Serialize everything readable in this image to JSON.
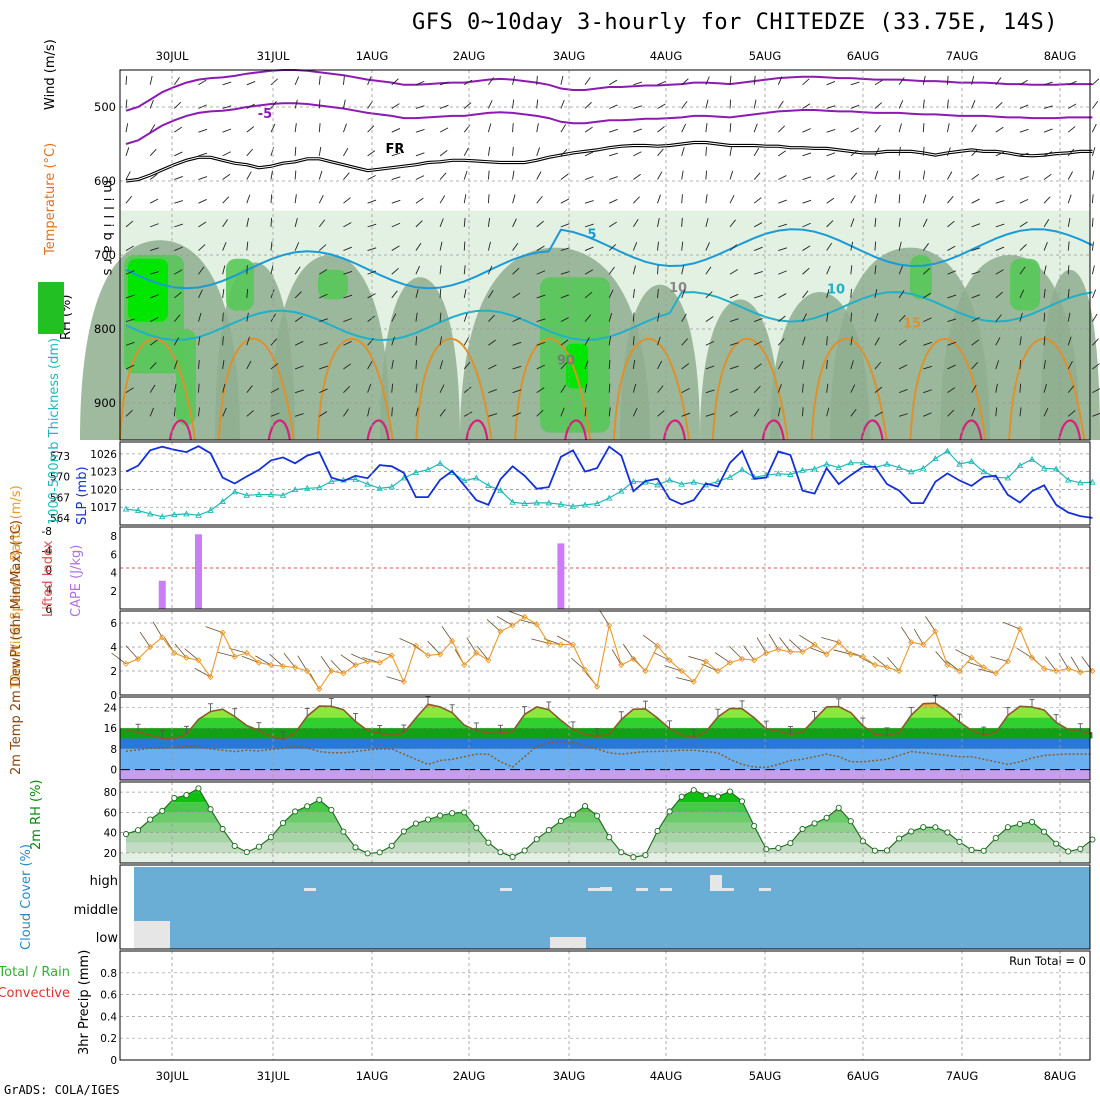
{
  "title": "GFS 0~10day 3-hourly for CHITEDZE (33.75E, 14S)",
  "credit": "GrADS: COLA/IGES",
  "dates": [
    "30JUL",
    "31JUL",
    "1AUG",
    "2AUG",
    "3AUG",
    "4AUG",
    "5AUG",
    "6AUG",
    "7AUG",
    "8AUG"
  ],
  "chart_data": [
    {
      "type": "heatmap",
      "panel": "upper-air",
      "ylabel": "millibars",
      "yticks": [
        500,
        600,
        700,
        800,
        900
      ],
      "ylim": [
        450,
        950
      ],
      "legend_labels": [
        "Wind (m/s)",
        "Temperature (°C)",
        "RH (%)"
      ],
      "contour_labels": [
        "-5",
        "FR",
        "5",
        "10",
        "15",
        "10",
        "90"
      ],
      "colors": {
        "rh_light": "#e3f1e3",
        "rh_mid": "#b8d6b8",
        "rh_dark": "#8fae8f",
        "rh_green": "#58c858",
        "rh_bright": "#00e600",
        "temp_purple": "#8c1ab3",
        "freezing": "#000000",
        "temp_5_10": "#1a9ad6",
        "temp_10": "#20b0c8",
        "temp_15": "#e0902a",
        "temp_20": "#d6207a"
      },
      "freezing_level_mb": [
        600,
        598,
        592,
        585,
        578,
        572,
        568,
        568,
        572,
        576,
        578,
        582,
        580,
        576,
        574,
        570,
        570,
        574,
        578,
        582,
        586,
        584,
        582,
        580,
        578,
        575,
        574,
        572,
        572,
        573,
        574,
        575,
        575,
        575,
        572,
        568,
        565,
        562,
        560,
        558,
        555,
        553,
        552,
        552,
        553,
        552,
        550,
        548,
        548,
        550,
        552,
        552,
        552,
        553,
        553,
        555,
        555,
        556,
        556,
        558,
        560,
        562,
        562,
        560,
        560,
        560,
        562,
        565,
        562,
        560,
        558,
        560,
        560,
        562,
        565,
        566,
        565,
        563,
        562,
        560,
        560
      ],
      "minus5_level_mb": [
        550,
        545,
        535,
        525,
        518,
        512,
        508,
        506,
        505,
        503,
        500,
        498,
        496,
        495,
        495,
        496,
        498,
        500,
        502,
        505,
        508,
        510,
        512,
        515,
        515,
        514,
        513,
        512,
        512,
        510,
        508,
        507,
        508,
        510,
        512,
        515,
        520,
        522,
        522,
        520,
        518,
        518,
        517,
        516,
        516,
        515,
        514,
        512,
        512,
        513,
        514,
        512,
        510,
        508,
        506,
        505,
        504,
        504,
        505,
        506,
        506,
        507,
        508,
        508,
        508,
        509,
        510,
        510,
        511,
        512,
        512,
        512,
        513,
        514,
        514,
        515,
        515,
        515,
        514,
        514,
        514
      ]
    },
    {
      "type": "line",
      "panel": "slp-thickness",
      "ylabel_left": "1000-500mb Thickness (dm)",
      "ylabel_right": "SLP (mb)",
      "thickness_ticks": [
        564,
        567,
        570,
        573
      ],
      "slp_ticks": [
        1017,
        1020,
        1023,
        1026
      ],
      "thickness_ylim": [
        563,
        575
      ],
      "slp_ylim": [
        1014,
        1028
      ],
      "series": [
        {
          "name": "SLP",
          "color": "#1430d8",
          "values": [
            1023.0,
            1024.0,
            1026.6,
            1027.2,
            1026.7,
            1026.3,
            1027.3,
            1026.1,
            1022.0,
            1021.0,
            1022.2,
            1023.3,
            1024.9,
            1025.4,
            1024.4,
            1025.7,
            1026.3,
            1022.0,
            1021.4,
            1022.3,
            1021.9,
            1024.1,
            1023.9,
            1022.8,
            1018.7,
            1018.7,
            1021.6,
            1023.1,
            1020.7,
            1018.2,
            1017.4,
            1021.7,
            1023.9,
            1022.3,
            1020.1,
            1020.4,
            1025.5,
            1026.6,
            1023.0,
            1023.6,
            1027.2,
            1025.7,
            1019.7,
            1021.4,
            1021.8,
            1018.4,
            1017.5,
            1018.2,
            1021.0,
            1020.5,
            1024.5,
            1026.5,
            1021.8,
            1022.0,
            1026.4,
            1025.8,
            1019.8,
            1019.3,
            1023.6,
            1020.9,
            1022.4,
            1023.8,
            1023.8,
            1020.9,
            1019.8,
            1017.7,
            1017.7,
            1021.3,
            1022.7,
            1021.5,
            1020.6,
            1022.1,
            1022.3,
            1019.1,
            1017.8,
            1019.7,
            1020.7,
            1017.4,
            1016.1,
            1015.5,
            1015.2
          ]
        },
        {
          "name": "Thickness",
          "color": "#20b8b8",
          "values": [
            565.3,
            565.1,
            564.6,
            564.2,
            564.5,
            564.6,
            564.4,
            565.1,
            566.4,
            567.8,
            567.3,
            567.4,
            567.4,
            567.3,
            568.1,
            568.3,
            568.4,
            569.3,
            569.5,
            569.6,
            568.9,
            568.3,
            568.5,
            569.8,
            570.6,
            571.0,
            571.9,
            570.6,
            569.4,
            569.8,
            568.7,
            568.0,
            566.3,
            566.1,
            566.2,
            566.2,
            566.0,
            565.7,
            565.9,
            566.1,
            566.9,
            567.9,
            569.3,
            569.2,
            568.8,
            569.5,
            568.9,
            569.2,
            568.8,
            569.3,
            569.9,
            571.0,
            569.9,
            570.2,
            570.4,
            570.3,
            570.9,
            571.1,
            571.8,
            571.3,
            572.0,
            572.0,
            571.3,
            571.8,
            571.3,
            570.7,
            571.2,
            572.6,
            573.7,
            571.8,
            572.2,
            570.7,
            569.9,
            569.8,
            571.6,
            572.5,
            571.2,
            571.1,
            569.5,
            569.1,
            569.2
          ]
        }
      ]
    },
    {
      "type": "bar",
      "panel": "cape-lifted-index",
      "ylabel_left": "Lifted Index",
      "ylabel_right": "CAPE (J/kg)",
      "li_ticks": [
        "-8",
        "-4",
        "0",
        "4",
        "6"
      ],
      "cape_ticks": [
        "2",
        "4",
        "6",
        "8"
      ],
      "colors": {
        "cape": "#c97ef5",
        "li_zero": "#e05050"
      },
      "series": [
        {
          "name": "CAPE",
          "values": [
            0,
            0,
            0,
            3.1,
            0,
            0,
            8.2,
            0,
            0,
            0,
            0,
            0,
            0,
            0,
            0,
            0,
            0,
            0,
            0,
            0,
            0,
            0,
            0,
            0,
            0,
            0,
            0,
            0,
            0,
            0,
            0,
            0,
            0,
            0,
            0,
            0,
            7.2,
            0,
            0,
            0,
            0,
            0,
            0,
            0,
            0,
            0,
            0,
            0,
            0,
            0,
            0,
            0,
            0,
            0,
            0,
            0,
            0,
            0,
            0,
            0,
            0,
            0,
            0,
            0,
            0,
            0,
            0,
            0,
            0,
            0,
            0,
            0,
            0,
            0,
            0,
            0,
            0,
            0,
            0,
            0,
            0
          ]
        }
      ]
    },
    {
      "type": "line",
      "panel": "10m-wind",
      "ylabel": "10m Wind Speed & Barbs (m/s)",
      "yticks": [
        0,
        2,
        4,
        6
      ],
      "ylim": [
        0,
        7
      ],
      "series": [
        {
          "name": "10m Wind Speed",
          "color": "#e89a2c",
          "values": [
            2.6,
            3.0,
            4.0,
            4.8,
            3.5,
            3.1,
            2.9,
            1.5,
            5.2,
            3.2,
            3.5,
            2.7,
            2.5,
            2.4,
            2.3,
            2.0,
            0.5,
            2.0,
            1.8,
            2.5,
            2.8,
            2.7,
            3.3,
            1.1,
            4.1,
            3.3,
            3.4,
            4.5,
            2.5,
            3.5,
            2.9,
            5.3,
            5.8,
            6.5,
            5.9,
            4.3,
            4.2,
            4.2,
            2.1,
            0.7,
            5.8,
            2.5,
            3.0,
            2.0,
            4.1,
            2.9,
            2.0,
            1.1,
            2.8,
            2.0,
            2.7,
            3.0,
            2.9,
            3.5,
            3.8,
            3.6,
            3.6,
            4.2,
            3.4,
            4.4,
            3.4,
            3.2,
            2.5,
            2.3,
            2.0,
            4.4,
            4.2,
            5.3,
            2.5,
            2.0,
            3.1,
            2.3,
            1.8,
            2.8,
            5.5,
            3.1,
            2.2,
            2.0,
            2.2,
            1.9,
            2.0
          ]
        }
      ]
    },
    {
      "type": "area",
      "panel": "2m-temperature",
      "ylabel": "2m Temp 2m DewPt (6hr Min/Max) (°C)",
      "yticks": [
        0,
        8,
        16,
        24
      ],
      "ylim": [
        -4,
        28
      ],
      "series": [
        {
          "name": "2m Temp",
          "color": "#8b5a2b",
          "values": [
            15.0,
            14.5,
            13.3,
            12.0,
            11.8,
            13.7,
            19.4,
            22.4,
            23.3,
            20.5,
            17.0,
            15.1,
            12.8,
            11.6,
            14.2,
            20.6,
            24.5,
            24.4,
            23.1,
            18.6,
            15.1,
            14.0,
            13.2,
            14.2,
            19.9,
            25.2,
            24.2,
            22.0,
            17.2,
            15.0,
            14.1,
            14.1,
            14.7,
            21.3,
            24.2,
            23.1,
            19.0,
            15.4,
            13.6,
            12.8,
            13.6,
            19.3,
            23.3,
            23.4,
            19.9,
            15.8,
            13.3,
            12.4,
            14.6,
            20.3,
            23.6,
            23.5,
            20.0,
            15.7,
            14.8,
            13.6,
            14.5,
            19.4,
            24.2,
            24.3,
            22.0,
            16.9,
            13.6,
            13.1,
            14.3,
            21.0,
            25.4,
            25.6,
            22.5,
            18.4,
            15.1,
            13.4,
            14.3,
            20.9,
            24.4,
            24.1,
            23.0,
            18.2,
            15.5,
            14.7,
            14.1
          ]
        },
        {
          "name": "2m DewPt",
          "color": "#8b5a2b",
          "values": [
            7.1,
            7.6,
            8.3,
            8.3,
            8.6,
            9.0,
            8.9,
            8.0,
            7.5,
            7.0,
            7.5,
            7.2,
            7.8,
            8.2,
            9.0,
            8.3,
            7.0,
            6.5,
            6.5,
            7.0,
            7.6,
            8.0,
            8.0,
            6.0,
            4.0,
            2.0,
            3.5,
            4.0,
            5.0,
            6.0,
            6.0,
            3.0,
            1.0,
            5.0,
            9.0,
            10.5,
            10.8,
            10.5,
            9.0,
            8.0,
            6.5,
            6.0,
            6.5,
            7.0,
            7.0,
            7.2,
            7.5,
            7.5,
            7.0,
            6.5,
            4.0,
            2.0,
            1.0,
            0.8,
            2.0,
            3.5,
            4.0,
            5.0,
            6.0,
            5.0,
            3.0,
            3.0,
            3.5,
            4.0,
            5.5,
            7.0,
            6.5,
            6.0,
            5.5,
            5.0,
            5.0,
            4.0,
            3.0,
            2.0,
            3.0,
            4.5,
            5.5,
            5.8,
            6.0,
            6.0,
            6.0
          ]
        }
      ]
    },
    {
      "type": "area",
      "panel": "2m-rh",
      "ylabel": "2m RH (%)",
      "yticks": [
        20,
        40,
        60,
        80
      ],
      "ylim": [
        10,
        90
      ],
      "series": [
        {
          "name": "2m RH",
          "values": [
            38.6,
            42.4,
            52.9,
            61.5,
            74.1,
            77.1,
            83.7,
            63.1,
            43.6,
            26.8,
            20.8,
            26.1,
            35.5,
            49.5,
            60.9,
            66.0,
            72.4,
            62.4,
            41.0,
            25.4,
            19.5,
            20.5,
            27.0,
            41.2,
            49.0,
            52.9,
            56.8,
            59.2,
            60.0,
            44.8,
            30.1,
            20.7,
            16.0,
            22.3,
            33.5,
            42.5,
            51.5,
            57.6,
            66.2,
            56.6,
            35.5,
            20.6,
            15.7,
            17.7,
            41.6,
            60.9,
            75.5,
            81.9,
            77.0,
            75.8,
            80.6,
            71.0,
            46.5,
            23.6,
            24.8,
            29.6,
            43.6,
            49.1,
            54.7,
            64.5,
            51.3,
            31.5,
            22.2,
            22.4,
            34.2,
            41.2,
            45.4,
            45.3,
            40.2,
            30.9,
            22.9,
            22.1,
            34.7,
            45.4,
            48.5,
            50.6,
            40.9,
            29.1,
            21.4,
            23.9,
            33.2
          ]
        }
      ]
    },
    {
      "type": "bar",
      "panel": "cloud-cover",
      "ylabel": "Cloud Cover (%)",
      "categories": [
        "high",
        "middle",
        "low"
      ],
      "colors": {
        "background": "#6aaed6",
        "cloud": "#e6e6e6"
      }
    },
    {
      "type": "bar",
      "panel": "3hr-precip",
      "ylabel": "3hr Precip (mm)",
      "legend_labels": [
        "Total / Rain",
        "Convective"
      ],
      "yticks": [
        "0",
        "0.2",
        "0.4",
        "0.6",
        "0.8"
      ],
      "ylim": [
        0,
        1
      ],
      "annotation": "Run Total = 0",
      "values": []
    }
  ]
}
